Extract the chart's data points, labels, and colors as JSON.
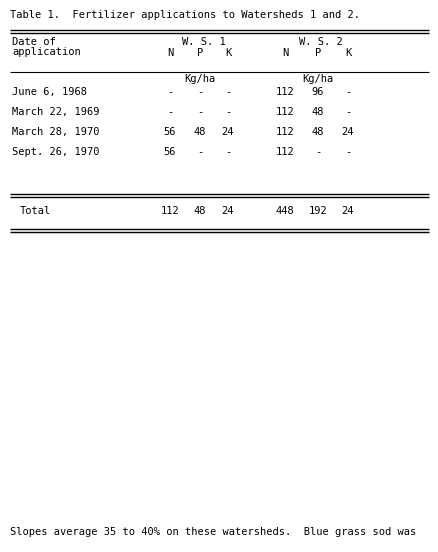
{
  "title": "Table 1.  Fertilizer applications to Watersheds 1 and 2.",
  "rows": [
    [
      "June 6, 1968",
      "-",
      "-",
      "-",
      "112",
      "96",
      "-"
    ],
    [
      "March 22, 1969",
      "-",
      "-",
      "-",
      "112",
      "48",
      "-"
    ],
    [
      "March 28, 1970",
      "56",
      "48",
      "24",
      "112",
      "48",
      "24"
    ],
    [
      "Sept. 26, 1970",
      "56",
      "-",
      "-",
      "112",
      "-",
      "-"
    ]
  ],
  "total_row": [
    "Total",
    "112",
    "48",
    "24",
    "448",
    "192",
    "24"
  ],
  "footnote": "Slopes average 35 to 40% on these watersheds.  Blue grass sod was",
  "font_family": "monospace",
  "font_size": 7.5,
  "title_font_size": 7.5,
  "bg_color": "#ffffff",
  "text_color": "#000000",
  "fig_w": 4.39,
  "fig_h": 5.52,
  "dpi": 100
}
